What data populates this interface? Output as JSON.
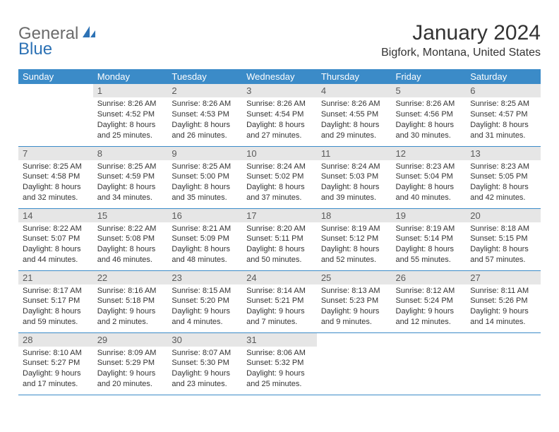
{
  "logo": {
    "general": "General",
    "blue": "Blue"
  },
  "title": "January 2024",
  "location": "Bigfork, Montana, United States",
  "colors": {
    "header_bg": "#3b8bc8",
    "header_text": "#ffffff",
    "daynum_bg": "#e6e6e6",
    "daynum_text": "#5a5a5a",
    "row_border": "#3b8bc8",
    "body_text": "#333333",
    "logo_gray": "#6b6b6b",
    "logo_blue": "#2d72b5"
  },
  "day_headers": [
    "Sunday",
    "Monday",
    "Tuesday",
    "Wednesday",
    "Thursday",
    "Friday",
    "Saturday"
  ],
  "weeks": [
    [
      {
        "num": "",
        "sunrise": "",
        "sunset": "",
        "daylight1": "",
        "daylight2": ""
      },
      {
        "num": "1",
        "sunrise": "Sunrise: 8:26 AM",
        "sunset": "Sunset: 4:52 PM",
        "daylight1": "Daylight: 8 hours",
        "daylight2": "and 25 minutes."
      },
      {
        "num": "2",
        "sunrise": "Sunrise: 8:26 AM",
        "sunset": "Sunset: 4:53 PM",
        "daylight1": "Daylight: 8 hours",
        "daylight2": "and 26 minutes."
      },
      {
        "num": "3",
        "sunrise": "Sunrise: 8:26 AM",
        "sunset": "Sunset: 4:54 PM",
        "daylight1": "Daylight: 8 hours",
        "daylight2": "and 27 minutes."
      },
      {
        "num": "4",
        "sunrise": "Sunrise: 8:26 AM",
        "sunset": "Sunset: 4:55 PM",
        "daylight1": "Daylight: 8 hours",
        "daylight2": "and 29 minutes."
      },
      {
        "num": "5",
        "sunrise": "Sunrise: 8:26 AM",
        "sunset": "Sunset: 4:56 PM",
        "daylight1": "Daylight: 8 hours",
        "daylight2": "and 30 minutes."
      },
      {
        "num": "6",
        "sunrise": "Sunrise: 8:25 AM",
        "sunset": "Sunset: 4:57 PM",
        "daylight1": "Daylight: 8 hours",
        "daylight2": "and 31 minutes."
      }
    ],
    [
      {
        "num": "7",
        "sunrise": "Sunrise: 8:25 AM",
        "sunset": "Sunset: 4:58 PM",
        "daylight1": "Daylight: 8 hours",
        "daylight2": "and 32 minutes."
      },
      {
        "num": "8",
        "sunrise": "Sunrise: 8:25 AM",
        "sunset": "Sunset: 4:59 PM",
        "daylight1": "Daylight: 8 hours",
        "daylight2": "and 34 minutes."
      },
      {
        "num": "9",
        "sunrise": "Sunrise: 8:25 AM",
        "sunset": "Sunset: 5:00 PM",
        "daylight1": "Daylight: 8 hours",
        "daylight2": "and 35 minutes."
      },
      {
        "num": "10",
        "sunrise": "Sunrise: 8:24 AM",
        "sunset": "Sunset: 5:02 PM",
        "daylight1": "Daylight: 8 hours",
        "daylight2": "and 37 minutes."
      },
      {
        "num": "11",
        "sunrise": "Sunrise: 8:24 AM",
        "sunset": "Sunset: 5:03 PM",
        "daylight1": "Daylight: 8 hours",
        "daylight2": "and 39 minutes."
      },
      {
        "num": "12",
        "sunrise": "Sunrise: 8:23 AM",
        "sunset": "Sunset: 5:04 PM",
        "daylight1": "Daylight: 8 hours",
        "daylight2": "and 40 minutes."
      },
      {
        "num": "13",
        "sunrise": "Sunrise: 8:23 AM",
        "sunset": "Sunset: 5:05 PM",
        "daylight1": "Daylight: 8 hours",
        "daylight2": "and 42 minutes."
      }
    ],
    [
      {
        "num": "14",
        "sunrise": "Sunrise: 8:22 AM",
        "sunset": "Sunset: 5:07 PM",
        "daylight1": "Daylight: 8 hours",
        "daylight2": "and 44 minutes."
      },
      {
        "num": "15",
        "sunrise": "Sunrise: 8:22 AM",
        "sunset": "Sunset: 5:08 PM",
        "daylight1": "Daylight: 8 hours",
        "daylight2": "and 46 minutes."
      },
      {
        "num": "16",
        "sunrise": "Sunrise: 8:21 AM",
        "sunset": "Sunset: 5:09 PM",
        "daylight1": "Daylight: 8 hours",
        "daylight2": "and 48 minutes."
      },
      {
        "num": "17",
        "sunrise": "Sunrise: 8:20 AM",
        "sunset": "Sunset: 5:11 PM",
        "daylight1": "Daylight: 8 hours",
        "daylight2": "and 50 minutes."
      },
      {
        "num": "18",
        "sunrise": "Sunrise: 8:19 AM",
        "sunset": "Sunset: 5:12 PM",
        "daylight1": "Daylight: 8 hours",
        "daylight2": "and 52 minutes."
      },
      {
        "num": "19",
        "sunrise": "Sunrise: 8:19 AM",
        "sunset": "Sunset: 5:14 PM",
        "daylight1": "Daylight: 8 hours",
        "daylight2": "and 55 minutes."
      },
      {
        "num": "20",
        "sunrise": "Sunrise: 8:18 AM",
        "sunset": "Sunset: 5:15 PM",
        "daylight1": "Daylight: 8 hours",
        "daylight2": "and 57 minutes."
      }
    ],
    [
      {
        "num": "21",
        "sunrise": "Sunrise: 8:17 AM",
        "sunset": "Sunset: 5:17 PM",
        "daylight1": "Daylight: 8 hours",
        "daylight2": "and 59 minutes."
      },
      {
        "num": "22",
        "sunrise": "Sunrise: 8:16 AM",
        "sunset": "Sunset: 5:18 PM",
        "daylight1": "Daylight: 9 hours",
        "daylight2": "and 2 minutes."
      },
      {
        "num": "23",
        "sunrise": "Sunrise: 8:15 AM",
        "sunset": "Sunset: 5:20 PM",
        "daylight1": "Daylight: 9 hours",
        "daylight2": "and 4 minutes."
      },
      {
        "num": "24",
        "sunrise": "Sunrise: 8:14 AM",
        "sunset": "Sunset: 5:21 PM",
        "daylight1": "Daylight: 9 hours",
        "daylight2": "and 7 minutes."
      },
      {
        "num": "25",
        "sunrise": "Sunrise: 8:13 AM",
        "sunset": "Sunset: 5:23 PM",
        "daylight1": "Daylight: 9 hours",
        "daylight2": "and 9 minutes."
      },
      {
        "num": "26",
        "sunrise": "Sunrise: 8:12 AM",
        "sunset": "Sunset: 5:24 PM",
        "daylight1": "Daylight: 9 hours",
        "daylight2": "and 12 minutes."
      },
      {
        "num": "27",
        "sunrise": "Sunrise: 8:11 AM",
        "sunset": "Sunset: 5:26 PM",
        "daylight1": "Daylight: 9 hours",
        "daylight2": "and 14 minutes."
      }
    ],
    [
      {
        "num": "28",
        "sunrise": "Sunrise: 8:10 AM",
        "sunset": "Sunset: 5:27 PM",
        "daylight1": "Daylight: 9 hours",
        "daylight2": "and 17 minutes."
      },
      {
        "num": "29",
        "sunrise": "Sunrise: 8:09 AM",
        "sunset": "Sunset: 5:29 PM",
        "daylight1": "Daylight: 9 hours",
        "daylight2": "and 20 minutes."
      },
      {
        "num": "30",
        "sunrise": "Sunrise: 8:07 AM",
        "sunset": "Sunset: 5:30 PM",
        "daylight1": "Daylight: 9 hours",
        "daylight2": "and 23 minutes."
      },
      {
        "num": "31",
        "sunrise": "Sunrise: 8:06 AM",
        "sunset": "Sunset: 5:32 PM",
        "daylight1": "Daylight: 9 hours",
        "daylight2": "and 25 minutes."
      },
      {
        "num": "",
        "sunrise": "",
        "sunset": "",
        "daylight1": "",
        "daylight2": ""
      },
      {
        "num": "",
        "sunrise": "",
        "sunset": "",
        "daylight1": "",
        "daylight2": ""
      },
      {
        "num": "",
        "sunrise": "",
        "sunset": "",
        "daylight1": "",
        "daylight2": ""
      }
    ]
  ]
}
